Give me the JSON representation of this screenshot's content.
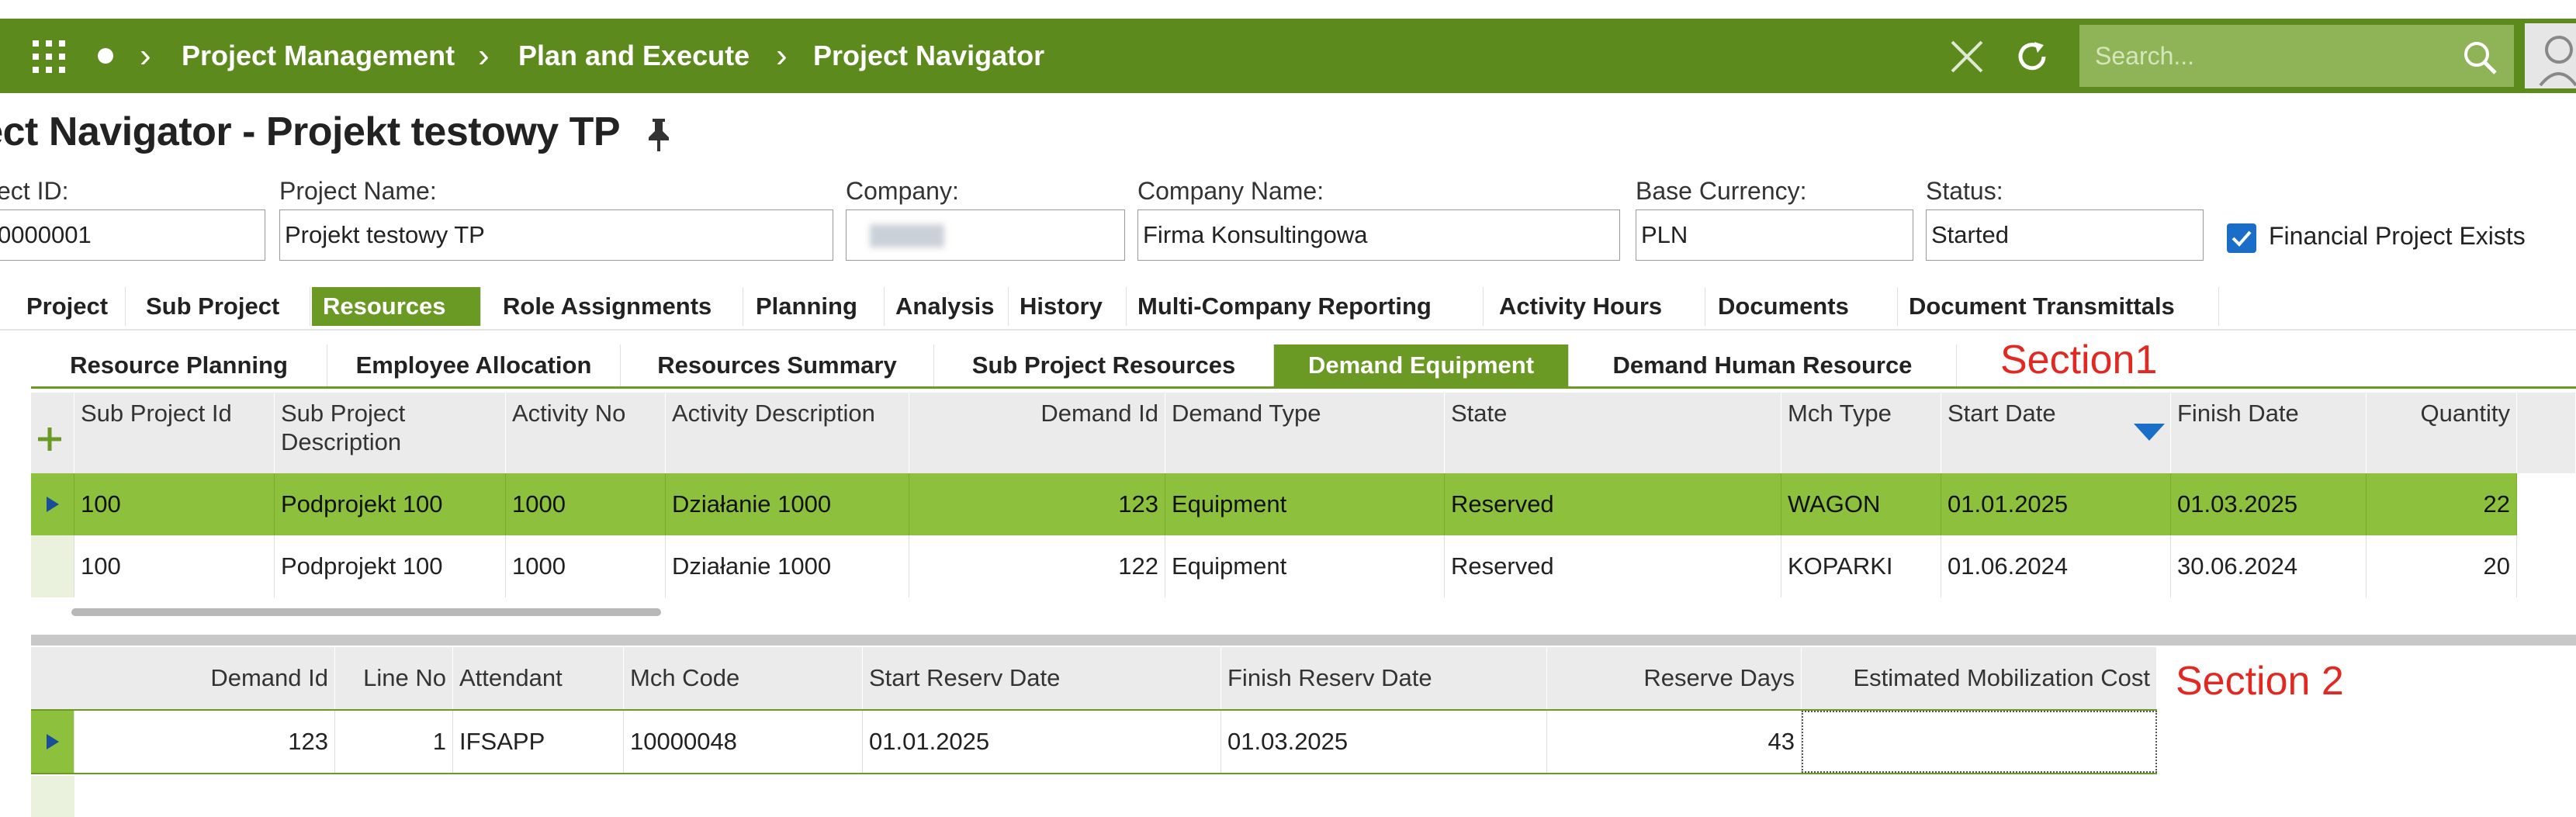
{
  "colors": {
    "brand": "#5d8a1c",
    "active_tab": "#6a9a24",
    "selected_row": "#8dc03d",
    "annotation": "#e32822"
  },
  "topbar": {
    "apps_icon": "apps-grid-icon",
    "home_icon": "dot-icon",
    "breadcrumbs": [
      "Project Management",
      "Plan and Execute",
      "Project Navigator"
    ],
    "search_placeholder": "Search...",
    "close_icon": "close-icon",
    "refresh_icon": "refresh-icon",
    "search_icon": "search-icon"
  },
  "page": {
    "title": "oject Navigator - Projekt testowy TP",
    "pin_icon": "pin-icon"
  },
  "fields": {
    "project_id": {
      "label": "ect ID:",
      "value": "0000001"
    },
    "project_name": {
      "label": "Project Name:",
      "value": "Projekt testowy TP"
    },
    "company": {
      "label": "Company:",
      "value": ""
    },
    "company_name": {
      "label": "Company Name:",
      "value": "Firma Konsultingowa"
    },
    "base_currency": {
      "label": "Base Currency:",
      "value": "PLN"
    },
    "status": {
      "label": "Status:",
      "value": "Started"
    },
    "financial": {
      "label": "Financial Project Exists",
      "checked": true
    }
  },
  "tabs": [
    "Project",
    "Sub Project",
    "Resources",
    "Role Assignments",
    "Planning",
    "Analysis",
    "History",
    "Multi-Company Reporting",
    "Activity Hours",
    "Documents",
    "Document Transmittals"
  ],
  "active_tab": "Resources",
  "subtabs": [
    "Resource Planning",
    "Employee Allocation",
    "Resources Summary",
    "Sub Project Resources",
    "Demand Equipment",
    "Demand Human Resource"
  ],
  "active_subtab": "Demand Equipment",
  "annotations": {
    "section1": "Section1",
    "section2": "Section 2"
  },
  "grid1": {
    "columns": [
      "Sub Project Id",
      "Sub Project Description",
      "Activity No",
      "Activity Description",
      "Demand Id",
      "Demand Type",
      "State",
      "Mch Type",
      "Start Date",
      "Finish Date",
      "Quantity"
    ],
    "rows": [
      [
        "100",
        "Podprojekt 100",
        "1000",
        "Działanie 1000",
        "123",
        "Equipment",
        "Reserved",
        "WAGON",
        "01.01.2025",
        "01.03.2025",
        "22"
      ],
      [
        "100",
        "Podprojekt 100",
        "1000",
        "Działanie 1000",
        "122",
        "Equipment",
        "Reserved",
        "KOPARKI",
        "01.06.2024",
        "30.06.2024",
        "20"
      ]
    ]
  },
  "grid2": {
    "columns": [
      "Demand Id",
      "Line No",
      "Attendant",
      "Mch Code",
      "Start Reserv Date",
      "Finish Reserv Date",
      "Reserve Days",
      "Estimated Mobilization Cost"
    ],
    "rows": [
      [
        "123",
        "1",
        "IFSAPP",
        "10000048",
        "01.01.2025",
        "01.03.2025",
        "43",
        ""
      ]
    ]
  }
}
